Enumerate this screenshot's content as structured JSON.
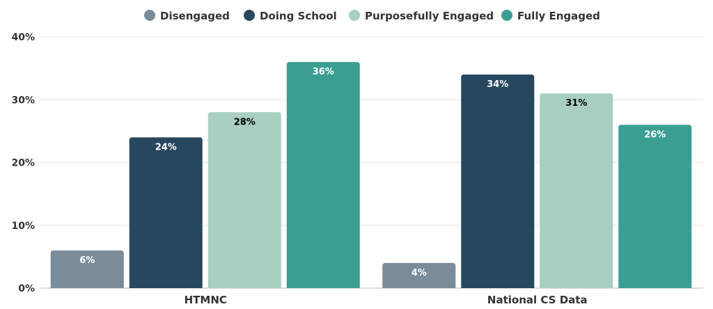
{
  "chart_data": {
    "type": "bar",
    "categories": [
      "HTMNC",
      "National CS Data"
    ],
    "series": [
      {
        "name": "Disengaged",
        "values": [
          6,
          4
        ],
        "color": "#7a8c99",
        "label_color": "#ffffff"
      },
      {
        "name": "Doing School",
        "values": [
          24,
          34
        ],
        "color": "#27485f",
        "label_color": "#ffffff"
      },
      {
        "name": "Purposefully Engaged",
        "values": [
          28,
          31
        ],
        "color": "#a9cfc1",
        "label_color": "#000000"
      },
      {
        "name": "Fully Engaged",
        "values": [
          36,
          26
        ],
        "color": "#3b9e93",
        "label_color": "#ffffff"
      }
    ],
    "value_suffix": "%",
    "ylim": [
      0,
      40
    ],
    "yticks": [
      0,
      10,
      20,
      30,
      40
    ],
    "ytick_labels": [
      "0%",
      "10%",
      "20%",
      "30%",
      "40%"
    ],
    "legend_position": "top",
    "grid": true
  }
}
